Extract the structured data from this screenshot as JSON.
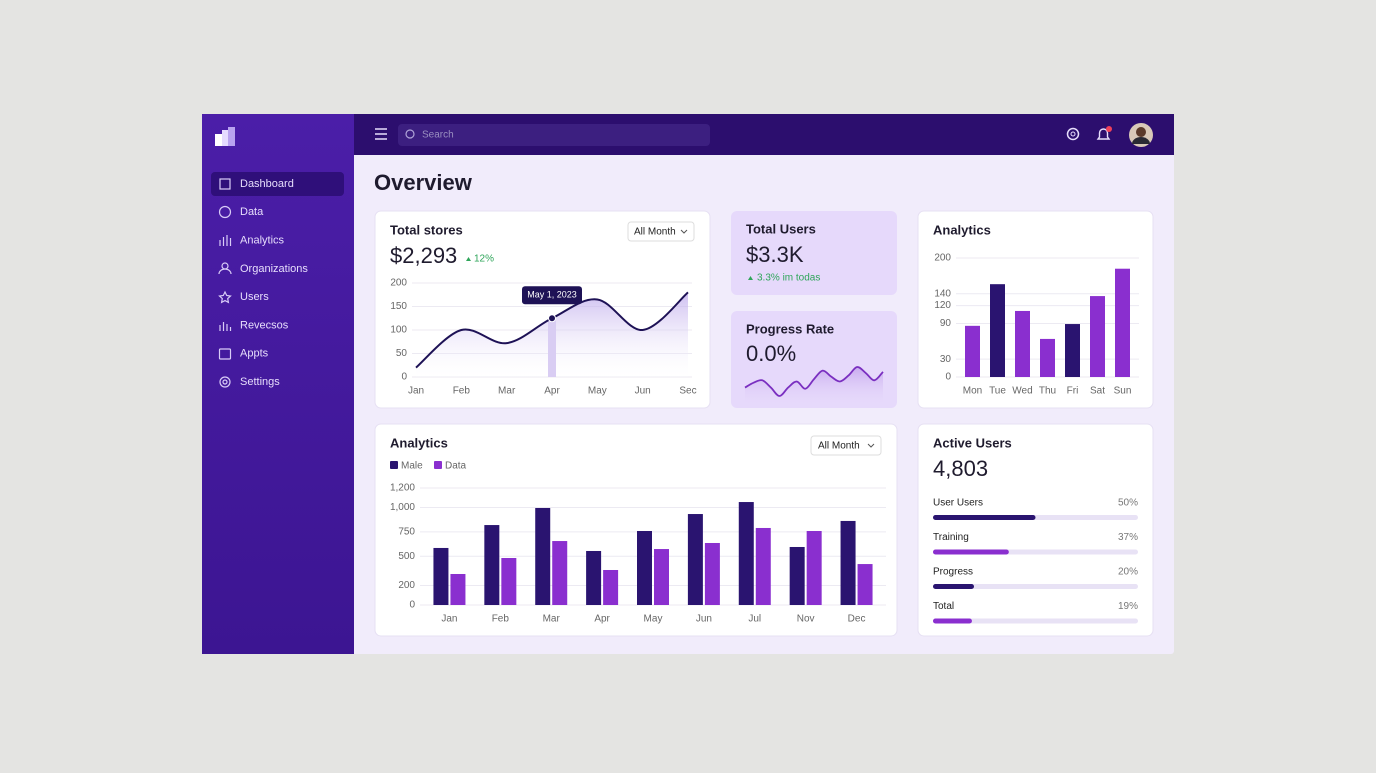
{
  "sidebar": {
    "nav": [
      "Dashboard",
      "Data",
      "Analytics",
      "Organizations",
      "Users",
      "Revecsos",
      "Appts",
      "Settings"
    ]
  },
  "topbar": {
    "search_placeholder": "Search"
  },
  "page_title": "Overview",
  "cards": {
    "total_users": {
      "title": "Total Users",
      "value": "$3.3K",
      "change": "3.3% im todas"
    }
  },
  "chart_data": [
    {
      "type": "line",
      "title": "Total stores",
      "value_text": "$2,293",
      "change": "12%",
      "filter": "All Month",
      "categories": [
        "Jan",
        "Feb",
        "Mar",
        "Apr",
        "May",
        "Jun",
        "Sec"
      ],
      "values": [
        20,
        100,
        72,
        125,
        165,
        100,
        180
      ],
      "ylim": [
        0,
        200
      ],
      "yticks": [
        0,
        50,
        100,
        150,
        200
      ],
      "grid": true,
      "color": "#1e1256",
      "tooltip": {
        "text": "May 1, 2023",
        "category": "Apr"
      }
    },
    {
      "type": "sparkline",
      "title": "Progress Rate",
      "value_text": "0.0%",
      "color": "#7a2fc0",
      "values": [
        10,
        14,
        16,
        10,
        3,
        10,
        15,
        9,
        17,
        24,
        19,
        15,
        20,
        27,
        22,
        16,
        23
      ]
    },
    {
      "type": "bar",
      "title": "Analytics",
      "categories": [
        "Mon",
        "Tue",
        "Wed",
        "Thu",
        "Fri",
        "Sat",
        "Sun"
      ],
      "values": [
        86,
        156,
        111,
        64,
        89,
        136,
        182
      ],
      "colors": [
        "#8a2fcf",
        "#2a1470",
        "#8a2fcf",
        "#8a2fcf",
        "#2a1470",
        "#8a2fcf",
        "#8a2fcf"
      ],
      "ylim": [
        0,
        200
      ],
      "yticks": [
        0,
        30,
        90,
        120,
        140,
        200
      ],
      "grid": true
    },
    {
      "type": "grouped_bar",
      "title": "Analytics",
      "filter": "All Month",
      "categories": [
        "Jan",
        "Feb",
        "Mar",
        "Apr",
        "May",
        "Jun",
        "Jul",
        "Nov",
        "Dec"
      ],
      "series": [
        {
          "name": "Male",
          "color": "#2a1470",
          "values": [
            585,
            820,
            995,
            554,
            759,
            933,
            1056,
            595,
            862
          ]
        },
        {
          "name": "Data",
          "color": "#8a2fcf",
          "values": [
            318,
            482,
            656,
            359,
            574,
            636,
            790,
            759,
            420
          ]
        }
      ],
      "ylim": [
        0,
        1200
      ],
      "yticks": [
        0,
        200,
        500,
        750,
        {
          "value": 1000,
          "label": "1,000"
        },
        {
          "value": 1200,
          "label": "1,200"
        }
      ],
      "grid": true
    },
    {
      "type": "progress",
      "title": "Active Users",
      "value_text": "4,803",
      "categories": [
        "User Users",
        "Training",
        "Progress",
        "Total"
      ],
      "values": [
        50,
        37,
        20,
        19
      ],
      "value_labels": [
        "50%",
        "37%",
        "20%",
        "19%"
      ],
      "colors": [
        "#2a1470",
        "#8a2fcf",
        "#2a1470",
        "#8a2fcf"
      ]
    }
  ]
}
